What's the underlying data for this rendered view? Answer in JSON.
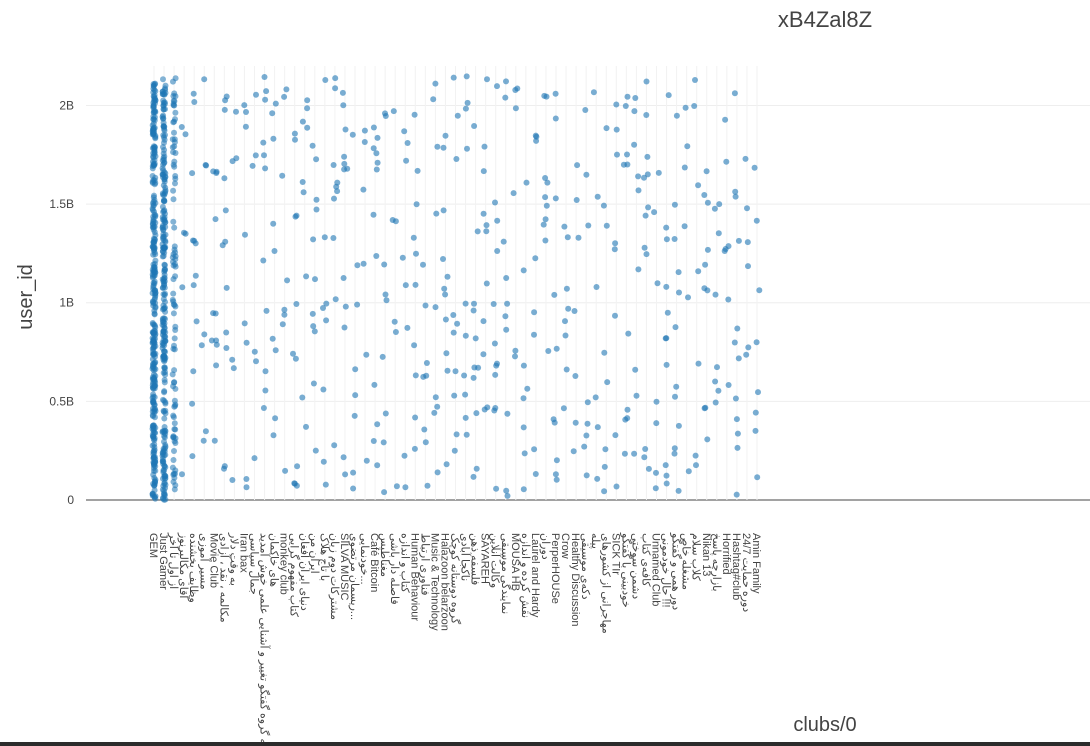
{
  "chart_data": {
    "type": "scatter",
    "title": "xB4Zal8Z",
    "xlabel": "clubs/0",
    "ylabel": "user_id",
    "ylim": [
      0,
      2200000000
    ],
    "y_ticks": [
      {
        "value": 0,
        "label": "0"
      },
      {
        "value": 500000000,
        "label": "0.5B"
      },
      {
        "value": 1000000000,
        "label": "1B"
      },
      {
        "value": 1500000000,
        "label": "1.5B"
      },
      {
        "value": 2000000000,
        "label": "2B"
      }
    ],
    "grid": true,
    "legend": "none",
    "marker_color": "#1f77b4",
    "categories": [
      "GEM",
      "Just Gamer",
      "از اول تا آخر",
      "آقای مکالبرنوز",
      "وظایف بخشنده",
      "مسیر آموزی",
      "Movie Club",
      "مکالمه ، نقد ، آزادی",
      "به وقت دلار",
      "Iran bax",
      "جمال سیاسی",
      "به گروه گفتگو تغییر و آشنایی علمی خوش آمدید 🖤",
      "های خاکمان",
      "monkey club",
      "کتاب مفهوم گرایی",
      "دنیای ایران افغان",
      "ایران من",
      "با تاج هلاک",
      "مشترکات دوم زبان",
      "SILVA MUSIC",
      "ریسمان مرتضوی...",
      "خودنمایی...",
      "Café Bitcoin",
      "مغناطیس",
      "فاصله دار باشی",
      "کتاب و اندازه",
      "Human Behaviour",
      "فناوری ارتباط",
      "Music & Technology",
      "Halazoon belarzoon",
      "گروه دوستانه کوچک",
      "ناکجا آبادی",
      "فلسفه ذهن",
      "SAYAREH",
      "وکالت آنلاین",
      "نمایندگی موسیقی",
      "MOUSA HB",
      "نقش کرده و اندازه",
      "Laurel and Hardy",
      "دوران",
      "PerperHOUSe",
      "Crow",
      "Healthy Discussion",
      "دکه‌ی موسیقی",
      "پیله",
      "مهاجرانی از کشورهای",
      "SICK TIr",
      "خودبینی با گفتگو",
      "دشمن سوختی",
      "کافه‌ی کتاب",
      "Unnamed Club",
      "حال خودمونی !!!",
      "دور همی و گفتگو",
      "مشغله خاص",
      "کلاب سلام",
      "Nikan 13",
      "بازارچه پاسخ",
      "Horrified",
      "Hashtag#club",
      "دوره حمایت 24/7",
      "Amin Family"
    ],
    "x_range": [
      -0.5,
      63
    ],
    "dense_columns": {
      "GEM": {
        "points": 330,
        "y_range": [
          0,
          2120000000
        ]
      },
      "Just Gamer": {
        "points": 260,
        "y_range": [
          0,
          2140000000
        ]
      },
      "از اول تا آخر": {
        "points": 90,
        "y_range": [
          0,
          2140000000
        ]
      }
    },
    "sparse_points_per_category": 9,
    "y_range_sparse": [
      20000000,
      2150000000
    ]
  }
}
